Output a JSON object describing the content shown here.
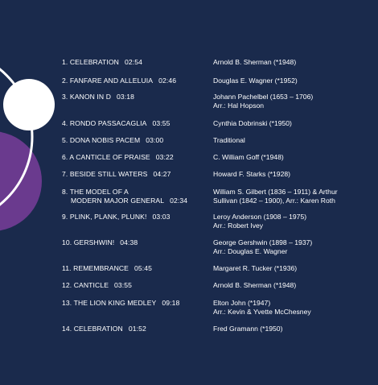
{
  "colors": {
    "background": "#1a2a4c",
    "circle_white": "#ffffff",
    "circle_purple": "#6a3a8e",
    "text": "#ffffff"
  },
  "tracks": [
    {
      "number": "1.",
      "title": [
        "CELEBRATION"
      ],
      "duration": "02:54",
      "composer": [
        "Arnold B. Sherman (*1948)"
      ]
    },
    {
      "number": "2.",
      "title": [
        "FANFARE AND ALLELUIA"
      ],
      "duration": "02:46",
      "composer": [
        "Douglas E. Wagner (*1952)"
      ]
    },
    {
      "number": "3.",
      "title": [
        "KANON IN D"
      ],
      "duration": "03:18",
      "composer": [
        "Johann Pachelbel (1653 – 1706)",
        "Arr.: Hal Hopson"
      ]
    },
    {
      "number": "4.",
      "title": [
        "RONDO PASSACAGLIA"
      ],
      "duration": "03:55",
      "composer": [
        "Cynthia Dobrinski (*1950)"
      ]
    },
    {
      "number": "5.",
      "title": [
        "DONA NOBIS PACEM"
      ],
      "duration": "03:00",
      "composer": [
        "Traditional"
      ]
    },
    {
      "number": "6.",
      "title": [
        "A CANTICLE OF PRAISE"
      ],
      "duration": "03:22",
      "composer": [
        "C. William Goff (*1948)"
      ]
    },
    {
      "number": "7.",
      "title": [
        "BESIDE STILL WATERS"
      ],
      "duration": "04:27",
      "composer": [
        "Howard F. Starks (*1928)"
      ]
    },
    {
      "number": "8.",
      "title": [
        "THE MODEL OF A",
        "MODERN MAJOR GENERAL"
      ],
      "duration": "02:34",
      "composer": [
        "William S. Gilbert (1836 – 1911) & Arthur",
        "Sullivan (1842 – 1900), Arr.: Karen Roth"
      ]
    },
    {
      "number": "9.",
      "title": [
        "PLINK, PLANK, PLUNK!"
      ],
      "duration": "03:03",
      "composer": [
        "Leroy Anderson (1908 – 1975)",
        "Arr.: Robert Ivey"
      ]
    },
    {
      "number": "10.",
      "title": [
        "GERSHWIN!"
      ],
      "duration": "04:38",
      "composer": [
        "George Gershwin (1898 – 1937)",
        "Arr.: Douglas E. Wagner"
      ]
    },
    {
      "number": "11.",
      "title": [
        "REMEMBRANCE"
      ],
      "duration": "05:45",
      "composer": [
        "Margaret R. Tucker (*1936)"
      ]
    },
    {
      "number": "12.",
      "title": [
        "CANTICLE"
      ],
      "duration": "03:55",
      "composer": [
        "Arnold B. Sherman (*1948)"
      ]
    },
    {
      "number": "13.",
      "title": [
        "THE LION KING MEDLEY"
      ],
      "duration": "09:18",
      "composer": [
        "Elton John (*1947)",
        "Arr.: Kevin & Yvette McChesney"
      ]
    },
    {
      "number": "14.",
      "title": [
        "CELEBRATION"
      ],
      "duration": "01:52",
      "composer": [
        "Fred Gramann (*1950)"
      ]
    }
  ]
}
